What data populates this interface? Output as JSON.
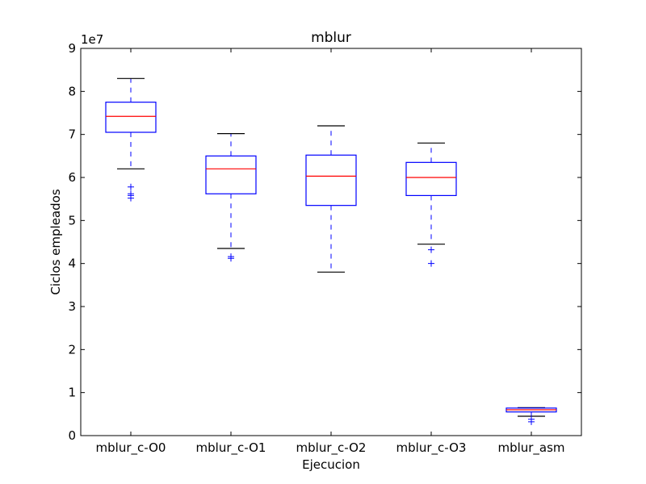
{
  "chart_data": {
    "type": "box",
    "title": "mblur",
    "xlabel": "Ejecucion",
    "ylabel": "Ciclos empleados",
    "offset_label": "1e7",
    "ylim": [
      0,
      9
    ],
    "yticks": [
      "0",
      "1",
      "2",
      "3",
      "4",
      "5",
      "6",
      "7",
      "8",
      "9"
    ],
    "categories": [
      "mblur_c-O0",
      "mblur_c-O1",
      "mblur_c-O2",
      "mblur_c-O3",
      "mblur_asm"
    ],
    "boxes": [
      {
        "whisker_low": 6.2,
        "q1": 7.05,
        "median": 7.42,
        "q3": 7.75,
        "whisker_high": 8.3,
        "outliers": [
          5.78,
          5.62,
          5.58,
          5.52
        ]
      },
      {
        "whisker_low": 4.35,
        "q1": 5.62,
        "median": 6.2,
        "q3": 6.5,
        "whisker_high": 7.02,
        "outliers": [
          4.16,
          4.12
        ]
      },
      {
        "whisker_low": 3.8,
        "q1": 5.35,
        "median": 6.03,
        "q3": 6.52,
        "whisker_high": 7.2,
        "outliers": []
      },
      {
        "whisker_low": 4.45,
        "q1": 5.58,
        "median": 6.0,
        "q3": 6.35,
        "whisker_high": 6.8,
        "outliers": [
          4.32,
          4.0
        ]
      },
      {
        "whisker_low": 0.45,
        "q1": 0.55,
        "median": 0.6,
        "q3": 0.64,
        "whisker_high": 0.65,
        "outliers": [
          0.38,
          0.32
        ]
      }
    ],
    "colors": {
      "box": "#0000ff",
      "median": "#ff0000",
      "whisker_cap": "#000000",
      "outlier": "#0000ff"
    },
    "grid": false,
    "legend": "none"
  }
}
